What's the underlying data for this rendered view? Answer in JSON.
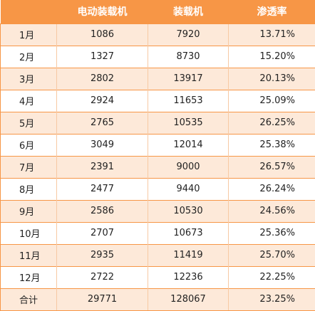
{
  "table": {
    "headers": [
      "",
      "电动装载机",
      "装载机",
      "渗透率"
    ],
    "rows": [
      {
        "month": "1月",
        "electric": "1086",
        "total": "7920",
        "rate": "13.71%"
      },
      {
        "month": "2月",
        "electric": "1327",
        "total": "8730",
        "rate": "15.20%"
      },
      {
        "month": "3月",
        "electric": "2802",
        "total": "13917",
        "rate": "20.13%"
      },
      {
        "month": "4月",
        "electric": "2924",
        "total": "11653",
        "rate": "25.09%"
      },
      {
        "month": "5月",
        "electric": "2765",
        "total": "10535",
        "rate": "26.25%"
      },
      {
        "month": "6月",
        "electric": "3049",
        "total": "12014",
        "rate": "25.38%"
      },
      {
        "month": "7月",
        "electric": "2391",
        "total": "9000",
        "rate": "26.57%"
      },
      {
        "month": "8月",
        "electric": "2477",
        "total": "9440",
        "rate": "26.24%"
      },
      {
        "month": "9月",
        "electric": "2586",
        "total": "10530",
        "rate": "24.56%"
      },
      {
        "month": "10月",
        "electric": "2707",
        "total": "10673",
        "rate": "25.36%"
      },
      {
        "month": "11月",
        "electric": "2935",
        "total": "11419",
        "rate": "25.70%"
      },
      {
        "month": "12月",
        "electric": "2722",
        "total": "12236",
        "rate": "22.25%"
      },
      {
        "month": "合计",
        "electric": "29771",
        "total": "128067",
        "rate": "23.25%"
      }
    ]
  },
  "colors": {
    "header_bg": "#f79646",
    "header_text": "#ffffff",
    "band_odd": "#fde9d9",
    "band_even": "#ffffff",
    "border": "#f79646"
  }
}
